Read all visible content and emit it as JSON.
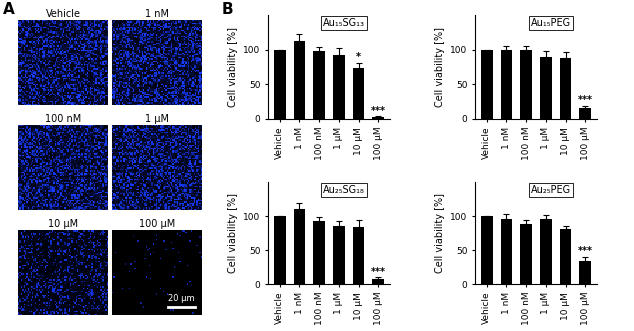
{
  "panel_labels": [
    "A",
    "B"
  ],
  "images": {
    "labels": [
      "Vehicle",
      "1 nM",
      "100 nM",
      "1 μM",
      "10 μM",
      "100 μM"
    ],
    "scale_bar": "20 μm"
  },
  "chart_data": [
    {
      "type": "bar",
      "title": "Au₁₅SG₁₃",
      "ylabel": "Cell viability [%]",
      "categories": [
        "Vehicle",
        "1 nM",
        "100 nM",
        "1 μM",
        "10 μM",
        "100 μM"
      ],
      "values": [
        100,
        112,
        98,
        93,
        73,
        3
      ],
      "errors": [
        0,
        10,
        6,
        9,
        8,
        1
      ],
      "significance": [
        null,
        null,
        null,
        null,
        "*",
        "***"
      ],
      "color": "#000000",
      "ylim": [
        0,
        150
      ],
      "yticks": [
        0,
        50,
        100
      ]
    },
    {
      "type": "bar",
      "title": "Au₁₅PEG",
      "ylabel": "Cell viability [%]",
      "categories": [
        "Vehicle",
        "1 nM",
        "100 nM",
        "1 μM",
        "10 μM",
        "100 μM"
      ],
      "values": [
        100,
        99,
        99,
        89,
        88,
        16
      ],
      "errors": [
        0,
        7,
        6,
        9,
        8,
        3
      ],
      "significance": [
        null,
        null,
        null,
        null,
        null,
        "***"
      ],
      "color": "#000000",
      "ylim": [
        0,
        150
      ],
      "yticks": [
        0,
        50,
        100
      ]
    },
    {
      "type": "bar",
      "title": "Au₂₅SG₁₈",
      "ylabel": "Cell viability [%]",
      "categories": [
        "Vehicle",
        "1 nM",
        "100 nM",
        "1 μM",
        "10 μM",
        "100 μM"
      ],
      "values": [
        100,
        111,
        93,
        86,
        84,
        8
      ],
      "errors": [
        0,
        8,
        6,
        7,
        10,
        2
      ],
      "significance": [
        null,
        null,
        null,
        null,
        null,
        "***"
      ],
      "color": "#000000",
      "ylim": [
        0,
        150
      ],
      "yticks": [
        0,
        50,
        100
      ]
    },
    {
      "type": "bar",
      "title": "Au₂₅PEG",
      "ylabel": "Cell viability [%]",
      "categories": [
        "Vehicle",
        "1 nM",
        "100 nM",
        "1 μM",
        "10 μM",
        "100 μM"
      ],
      "values": [
        100,
        96,
        88,
        96,
        81,
        34
      ],
      "errors": [
        0,
        7,
        6,
        6,
        5,
        6
      ],
      "significance": [
        null,
        null,
        null,
        null,
        null,
        "***"
      ],
      "color": "#000000",
      "ylim": [
        0,
        150
      ],
      "yticks": [
        0,
        50,
        100
      ]
    }
  ]
}
